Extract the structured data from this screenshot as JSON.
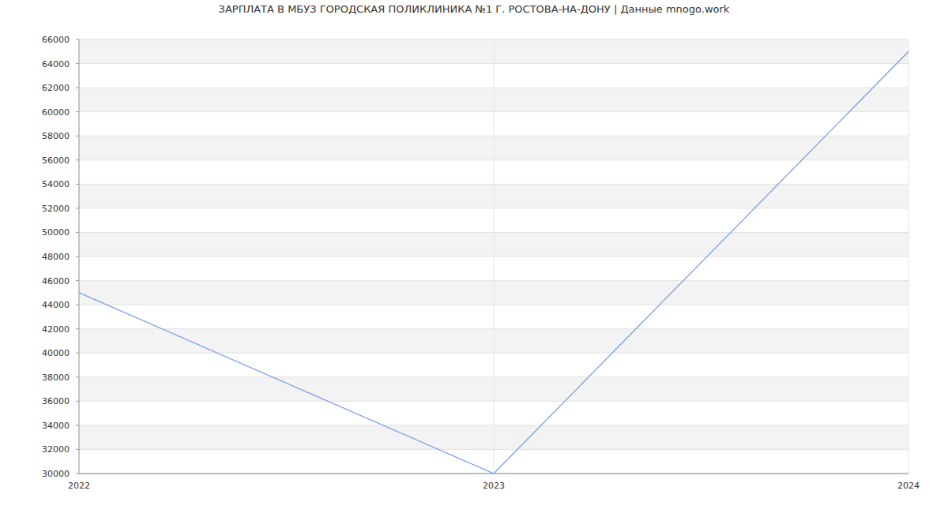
{
  "chart_data": {
    "type": "line",
    "title": "ЗАРПЛАТА В МБУЗ ГОРОДСКАЯ ПОЛИКЛИНИКА №1 Г. РОСТОВА-НА-ДОНУ | Данные mnogo.work",
    "categories": [
      "2022",
      "2023",
      "2024"
    ],
    "values": [
      45000,
      30000,
      65000
    ],
    "color": "#6f9ae8",
    "ylim": [
      30000,
      66000
    ],
    "yticks": [
      30000,
      32000,
      34000,
      36000,
      38000,
      40000,
      42000,
      44000,
      46000,
      48000,
      50000,
      52000,
      54000,
      56000,
      58000,
      60000,
      62000,
      64000,
      66000
    ],
    "grid": true
  }
}
